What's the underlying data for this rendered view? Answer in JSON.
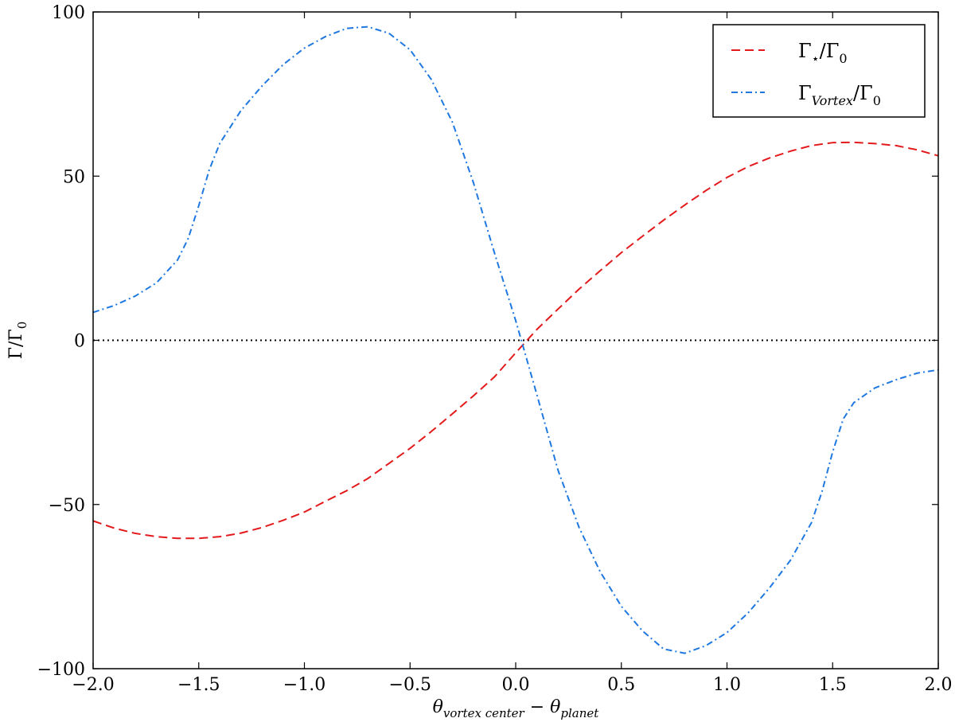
{
  "chart_data": {
    "type": "line",
    "title": "",
    "xlabel_parts": {
      "theta1": "θ",
      "sub1": "vortex center",
      "minus": " − ",
      "theta2": "θ",
      "sub2": "planet"
    },
    "ylabel_parts": {
      "g1": "Γ",
      "slash": "/",
      "g2": "Γ",
      "sub": "0"
    },
    "xlim": [
      -2.0,
      2.0
    ],
    "ylim": [
      -100,
      100
    ],
    "x_ticks": [
      -2.0,
      -1.5,
      -1.0,
      -0.5,
      0.0,
      0.5,
      1.0,
      1.5,
      2.0
    ],
    "x_tick_labels": [
      "−2.0",
      "−1.5",
      "−1.0",
      "−0.5",
      "0.0",
      "0.5",
      "1.0",
      "1.5",
      "2.0"
    ],
    "y_ticks": [
      -100,
      -50,
      0,
      50,
      100
    ],
    "y_tick_labels": [
      "−100",
      "−50",
      "0",
      "50",
      "100"
    ],
    "grid": false,
    "legend_position": "top-right",
    "reference_line": {
      "y": 0,
      "style": "dotted",
      "color": "#000000"
    },
    "series": [
      {
        "name_parts": {
          "g1": "Γ",
          "sub1": "⋆",
          "slash": "/",
          "g2": "Γ",
          "sub2": "0"
        },
        "style": "dashed",
        "color": "#e31a1c",
        "x": [
          -2.0,
          -1.9,
          -1.8,
          -1.7,
          -1.6,
          -1.5,
          -1.4,
          -1.3,
          -1.2,
          -1.1,
          -1.0,
          -0.9,
          -0.8,
          -0.7,
          -0.6,
          -0.5,
          -0.4,
          -0.3,
          -0.2,
          -0.1,
          0.0,
          0.1,
          0.2,
          0.3,
          0.4,
          0.5,
          0.6,
          0.7,
          0.8,
          0.9,
          1.0,
          1.1,
          1.2,
          1.3,
          1.4,
          1.5,
          1.6,
          1.7,
          1.8,
          1.9,
          2.0
        ],
        "y": [
          -55.0,
          -57.2,
          -58.8,
          -59.8,
          -60.3,
          -60.3,
          -59.8,
          -58.7,
          -57.0,
          -54.8,
          -52.3,
          -49.0,
          -45.8,
          -42.1,
          -37.5,
          -32.9,
          -27.8,
          -22.4,
          -16.9,
          -11.1,
          -3.8,
          3.3,
          9.5,
          15.6,
          21.2,
          26.7,
          31.7,
          36.6,
          41.2,
          45.6,
          49.6,
          52.9,
          55.5,
          57.6,
          59.3,
          60.2,
          60.3,
          59.9,
          59.3,
          58.0,
          56.2
        ]
      },
      {
        "name_parts": {
          "g1": "Γ",
          "sub1": "Vortex",
          "slash": "/",
          "g2": "Γ",
          "sub2": "0"
        },
        "style": "dashdot",
        "color": "#1f78e0",
        "x": [
          -2.0,
          -1.9,
          -1.8,
          -1.7,
          -1.6,
          -1.55,
          -1.5,
          -1.45,
          -1.4,
          -1.3,
          -1.2,
          -1.1,
          -1.0,
          -0.9,
          -0.8,
          -0.7,
          -0.6,
          -0.5,
          -0.4,
          -0.3,
          -0.2,
          -0.1,
          0.0,
          0.1,
          0.2,
          0.3,
          0.4,
          0.5,
          0.6,
          0.7,
          0.8,
          0.9,
          1.0,
          1.1,
          1.2,
          1.3,
          1.4,
          1.45,
          1.5,
          1.55,
          1.6,
          1.7,
          1.8,
          1.9,
          2.0
        ],
        "y": [
          8.5,
          10.6,
          13.5,
          17.5,
          24.5,
          31.0,
          41.0,
          52.0,
          60.0,
          70.0,
          77.5,
          84.0,
          89.0,
          92.5,
          95.0,
          95.5,
          93.5,
          88.5,
          79.5,
          66.5,
          48.0,
          26.5,
          6.0,
          -16.5,
          -39.5,
          -57.0,
          -70.5,
          -81.0,
          -88.5,
          -94.0,
          -95.3,
          -93.0,
          -89.0,
          -83.0,
          -75.5,
          -67.0,
          -55.5,
          -46.0,
          -34.0,
          -24.0,
          -19.0,
          -14.5,
          -12.0,
          -10.0,
          -9.0
        ]
      }
    ]
  }
}
